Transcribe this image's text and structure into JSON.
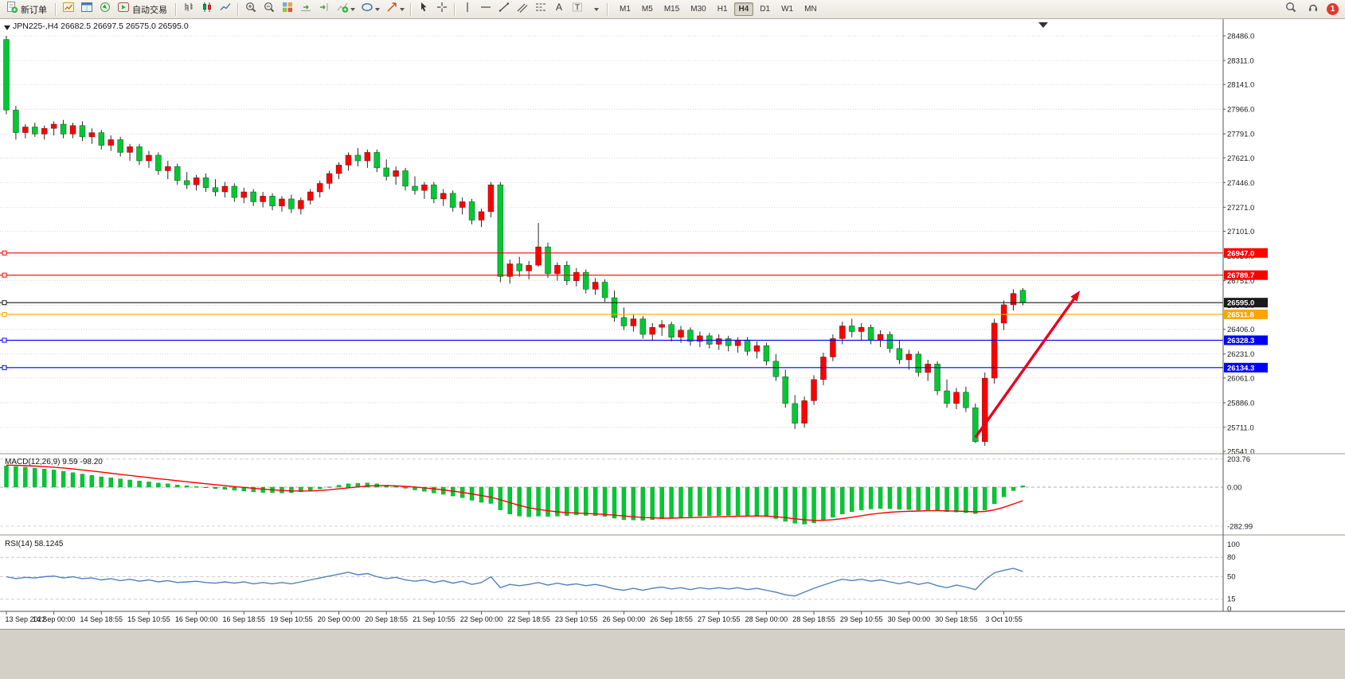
{
  "toolbar": {
    "new_order_label": "新订单",
    "auto_trading_label": "自动交易",
    "timeframes": [
      "M1",
      "M5",
      "M15",
      "M30",
      "H1",
      "H4",
      "D1",
      "W1",
      "MN"
    ],
    "active_timeframe": "H4",
    "notification_count": "1",
    "text_tool_glyph": "A",
    "label_tool_glyph": "T"
  },
  "chart_data": {
    "type": "candlestick",
    "title": "JPN225-,H4 26682.5 26697.5 26575.0 26595.0",
    "up_color": "#ff0000",
    "down_color": "#00c832",
    "price_axis": [
      28486.0,
      28311.0,
      28141.0,
      27966.0,
      27791.0,
      27621.0,
      27446.0,
      27271.0,
      27101.0,
      26926.0,
      26751.0,
      26576.0,
      26406.0,
      26231.0,
      26061.0,
      25886.0,
      25711.0,
      25541.0
    ],
    "hlines": [
      {
        "price": 26947.0,
        "label": "26947.0",
        "color": "#ff0000"
      },
      {
        "price": 26789.7,
        "label": "26789.7",
        "color": "#ff0000"
      },
      {
        "price": 26595.0,
        "label": "26595.0",
        "color": "#1a1a1a"
      },
      {
        "price": 26511.8,
        "label": "26511.8",
        "color": "#ffa500"
      },
      {
        "price": 26328.3,
        "label": "26328.3",
        "color": "#0000ff"
      },
      {
        "price": 26134.3,
        "label": "26134.3",
        "color": "#0000ff"
      }
    ],
    "trend_arrow": {
      "from_bar": 102,
      "from_price": 25640,
      "to_bar": 113,
      "to_price": 26680,
      "color": "#e8001c"
    },
    "time_labels": [
      "13 Sep 2022",
      "14 Sep 00:00",
      "14 Sep 18:55",
      "15 Sep 10:55",
      "16 Sep 00:00",
      "16 Sep 18:55",
      "19 Sep 10:55",
      "20 Sep 00:00",
      "20 Sep 18:55",
      "21 Sep 10:55",
      "22 Sep 00:00",
      "22 Sep 18:55",
      "23 Sep 10:55",
      "26 Sep 00:00",
      "26 Sep 18:55",
      "27 Sep 10:55",
      "28 Sep 00:00",
      "28 Sep 18:55",
      "29 Sep 10:55",
      "30 Sep 00:00",
      "30 Sep 18:55",
      "3 Oct 10:55"
    ],
    "candles": [
      [
        28460,
        28486,
        27930,
        27960
      ],
      [
        27960,
        27990,
        27750,
        27800
      ],
      [
        27800,
        27860,
        27760,
        27840
      ],
      [
        27840,
        27870,
        27770,
        27790
      ],
      [
        27790,
        27850,
        27750,
        27830
      ],
      [
        27830,
        27880,
        27780,
        27860
      ],
      [
        27860,
        27890,
        27760,
        27790
      ],
      [
        27790,
        27870,
        27760,
        27850
      ],
      [
        27850,
        27880,
        27740,
        27770
      ],
      [
        27770,
        27830,
        27720,
        27800
      ],
      [
        27800,
        27820,
        27680,
        27710
      ],
      [
        27710,
        27780,
        27670,
        27750
      ],
      [
        27750,
        27770,
        27630,
        27660
      ],
      [
        27660,
        27720,
        27600,
        27700
      ],
      [
        27700,
        27720,
        27570,
        27600
      ],
      [
        27600,
        27670,
        27550,
        27640
      ],
      [
        27640,
        27660,
        27500,
        27530
      ],
      [
        27530,
        27600,
        27470,
        27560
      ],
      [
        27560,
        27580,
        27430,
        27460
      ],
      [
        27460,
        27520,
        27400,
        27430
      ],
      [
        27430,
        27500,
        27390,
        27480
      ],
      [
        27480,
        27510,
        27380,
        27410
      ],
      [
        27410,
        27470,
        27350,
        27380
      ],
      [
        27380,
        27450,
        27340,
        27420
      ],
      [
        27420,
        27440,
        27310,
        27340
      ],
      [
        27340,
        27410,
        27300,
        27380
      ],
      [
        27380,
        27400,
        27280,
        27310
      ],
      [
        27310,
        27380,
        27270,
        27350
      ],
      [
        27350,
        27370,
        27250,
        27280
      ],
      [
        27280,
        27350,
        27240,
        27330
      ],
      [
        27330,
        27360,
        27230,
        27260
      ],
      [
        27260,
        27340,
        27220,
        27320
      ],
      [
        27320,
        27400,
        27290,
        27380
      ],
      [
        27380,
        27460,
        27340,
        27440
      ],
      [
        27440,
        27530,
        27400,
        27510
      ],
      [
        27510,
        27590,
        27470,
        27570
      ],
      [
        27570,
        27660,
        27530,
        27640
      ],
      [
        27640,
        27690,
        27560,
        27600
      ],
      [
        27600,
        27680,
        27550,
        27660
      ],
      [
        27660,
        27680,
        27520,
        27550
      ],
      [
        27550,
        27610,
        27460,
        27490
      ],
      [
        27490,
        27560,
        27430,
        27530
      ],
      [
        27530,
        27550,
        27390,
        27420
      ],
      [
        27420,
        27490,
        27360,
        27390
      ],
      [
        27390,
        27450,
        27330,
        27430
      ],
      [
        27430,
        27450,
        27300,
        27330
      ],
      [
        27330,
        27400,
        27280,
        27370
      ],
      [
        27370,
        27390,
        27240,
        27270
      ],
      [
        27270,
        27340,
        27220,
        27310
      ],
      [
        27310,
        27330,
        27150,
        27180
      ],
      [
        27180,
        27260,
        27130,
        27240
      ],
      [
        27240,
        27450,
        27200,
        27430
      ],
      [
        27430,
        27450,
        26740,
        26780
      ],
      [
        26780,
        26900,
        26730,
        26870
      ],
      [
        26870,
        26920,
        26780,
        26820
      ],
      [
        26820,
        26890,
        26760,
        26860
      ],
      [
        26860,
        27160,
        26850,
        26990
      ],
      [
        26990,
        27020,
        26770,
        26800
      ],
      [
        26800,
        26880,
        26750,
        26860
      ],
      [
        26860,
        26890,
        26720,
        26750
      ],
      [
        26750,
        26840,
        26710,
        26810
      ],
      [
        26810,
        26830,
        26660,
        26690
      ],
      [
        26690,
        26770,
        26650,
        26740
      ],
      [
        26740,
        26760,
        26600,
        26630
      ],
      [
        26630,
        26680,
        26460,
        26490
      ],
      [
        26490,
        26560,
        26400,
        26430
      ],
      [
        26430,
        26510,
        26390,
        26480
      ],
      [
        26480,
        26500,
        26340,
        26370
      ],
      [
        26370,
        26450,
        26330,
        26420
      ],
      [
        26420,
        26470,
        26360,
        26440
      ],
      [
        26440,
        26460,
        26320,
        26350
      ],
      [
        26350,
        26430,
        26310,
        26400
      ],
      [
        26400,
        26420,
        26290,
        26320
      ],
      [
        26320,
        26390,
        26280,
        26360
      ],
      [
        26360,
        26380,
        26270,
        26300
      ],
      [
        26300,
        26370,
        26260,
        26340
      ],
      [
        26340,
        26360,
        26250,
        26290
      ],
      [
        26290,
        26350,
        26240,
        26330
      ],
      [
        26330,
        26350,
        26220,
        26250
      ],
      [
        26250,
        26320,
        26200,
        26290
      ],
      [
        26290,
        26310,
        26150,
        26180
      ],
      [
        26180,
        26230,
        26040,
        26070
      ],
      [
        26070,
        26120,
        25850,
        25880
      ],
      [
        25880,
        25940,
        25700,
        25740
      ],
      [
        25740,
        25930,
        25710,
        25900
      ],
      [
        25900,
        26080,
        25870,
        26050
      ],
      [
        26050,
        26240,
        26010,
        26210
      ],
      [
        26210,
        26370,
        26180,
        26340
      ],
      [
        26340,
        26460,
        26300,
        26430
      ],
      [
        26430,
        26480,
        26350,
        26390
      ],
      [
        26390,
        26450,
        26330,
        26420
      ],
      [
        26420,
        26440,
        26300,
        26330
      ],
      [
        26330,
        26400,
        26280,
        26370
      ],
      [
        26370,
        26390,
        26240,
        26270
      ],
      [
        26270,
        26330,
        26160,
        26190
      ],
      [
        26190,
        26260,
        26120,
        26230
      ],
      [
        26230,
        26250,
        26070,
        26100
      ],
      [
        26100,
        26190,
        26040,
        26160
      ],
      [
        26160,
        26180,
        25940,
        25970
      ],
      [
        25970,
        26050,
        25850,
        25880
      ],
      [
        25880,
        25990,
        25840,
        25960
      ],
      [
        25960,
        26000,
        25820,
        25850
      ],
      [
        25850,
        25880,
        25600,
        25610
      ],
      [
        25610,
        26100,
        25580,
        26060
      ],
      [
        26060,
        26480,
        26020,
        26450
      ],
      [
        26450,
        26610,
        26400,
        26580
      ],
      [
        26580,
        26690,
        26540,
        26660
      ],
      [
        26682.5,
        26697.5,
        26575.0,
        26595.0
      ]
    ],
    "indicators": {
      "macd": {
        "label": "MACD(12,26,9) 9.59 -98.20",
        "levels": [
          203.76,
          0,
          -282.99
        ],
        "hist_color": "#00c832",
        "signal_color": "#ff0000",
        "histogram": [
          155,
          150,
          145,
          138,
          132,
          125,
          115,
          105,
          95,
          85,
          75,
          68,
          60,
          52,
          45,
          38,
          30,
          24,
          16,
          10,
          4,
          -4,
          -10,
          -16,
          -22,
          -28,
          -34,
          -38,
          -40,
          -42,
          -40,
          -34,
          -24,
          -12,
          2,
          14,
          24,
          28,
          30,
          24,
          14,
          4,
          -8,
          -20,
          -30,
          -42,
          -52,
          -64,
          -76,
          -95,
          -110,
          -118,
          -165,
          -195,
          -210,
          -215,
          -210,
          -212,
          -210,
          -206,
          -200,
          -205,
          -206,
          -212,
          -225,
          -235,
          -238,
          -240,
          -236,
          -230,
          -224,
          -218,
          -214,
          -210,
          -208,
          -206,
          -205,
          -204,
          -205,
          -208,
          -214,
          -228,
          -248,
          -262,
          -268,
          -258,
          -240,
          -218,
          -195,
          -178,
          -165,
          -158,
          -155,
          -156,
          -160,
          -162,
          -166,
          -165,
          -170,
          -178,
          -180,
          -185,
          -192,
          -165,
          -120,
          -70,
          -25,
          9.59
        ],
        "signal": [
          160,
          158,
          156,
          153,
          149,
          145,
          139,
          132,
          125,
          117,
          109,
          101,
          93,
          85,
          77,
          69,
          61,
          54,
          46,
          39,
          32,
          25,
          18,
          11,
          4,
          -2,
          -8,
          -14,
          -19,
          -24,
          -27,
          -28,
          -27,
          -24,
          -19,
          -12,
          -5,
          2,
          8,
          11,
          12,
          10,
          6,
          1,
          -5,
          -12,
          -20,
          -29,
          -38,
          -49,
          -61,
          -72,
          -91,
          -112,
          -132,
          -149,
          -161,
          -171,
          -179,
          -184,
          -187,
          -191,
          -194,
          -198,
          -203,
          -209,
          -215,
          -220,
          -223,
          -225,
          -225,
          -223,
          -221,
          -219,
          -217,
          -215,
          -213,
          -211,
          -210,
          -209,
          -210,
          -214,
          -221,
          -229,
          -237,
          -241,
          -241,
          -236,
          -228,
          -218,
          -207,
          -197,
          -189,
          -182,
          -178,
          -175,
          -173,
          -171,
          -171,
          -172,
          -174,
          -176,
          -179,
          -176,
          -165,
          -146,
          -122,
          -98.2
        ]
      },
      "rsi": {
        "label": "RSI(14) 58.1245",
        "levels": [
          100,
          80,
          50,
          15,
          0
        ],
        "line_color": "#4f81bd",
        "values": [
          50,
          47,
          49,
          48,
          50,
          51,
          48,
          50,
          47,
          48,
          45,
          47,
          44,
          46,
          43,
          45,
          42,
          44,
          41,
          42,
          43,
          41,
          40,
          42,
          40,
          42,
          39,
          41,
          39,
          41,
          39,
          42,
          45,
          48,
          51,
          54,
          57,
          53,
          55,
          50,
          47,
          49,
          45,
          43,
          45,
          41,
          44,
          40,
          43,
          38,
          41,
          50,
          33,
          38,
          36,
          38,
          41,
          37,
          40,
          37,
          39,
          36,
          38,
          35,
          31,
          29,
          32,
          29,
          32,
          34,
          31,
          33,
          30,
          33,
          31,
          33,
          31,
          33,
          30,
          32,
          29,
          26,
          22,
          20,
          26,
          32,
          37,
          42,
          46,
          44,
          46,
          43,
          45,
          42,
          39,
          42,
          38,
          41,
          36,
          33,
          37,
          34,
          30,
          45,
          56,
          60,
          63,
          58.12
        ]
      }
    }
  }
}
